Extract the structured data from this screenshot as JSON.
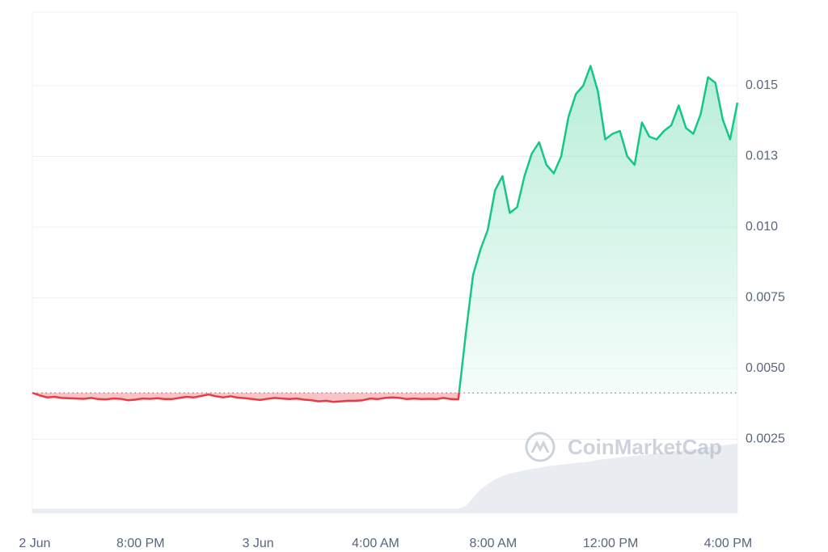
{
  "chart_data": {
    "type": "line",
    "watermark": "CoinMarketCap",
    "values": [
      0.00414,
      0.00405,
      0.00398,
      0.004,
      0.00396,
      0.00395,
      0.00394,
      0.00393,
      0.00396,
      0.00392,
      0.00391,
      0.00394,
      0.00393,
      0.00388,
      0.0039,
      0.00394,
      0.00393,
      0.00395,
      0.00392,
      0.00392,
      0.00396,
      0.004,
      0.00398,
      0.00403,
      0.00408,
      0.00402,
      0.00398,
      0.00402,
      0.00397,
      0.00395,
      0.00392,
      0.00389,
      0.00393,
      0.00396,
      0.00394,
      0.00392,
      0.00394,
      0.0039,
      0.00388,
      0.00384,
      0.00386,
      0.00382,
      0.00384,
      0.00386,
      0.00386,
      0.00388,
      0.00394,
      0.00392,
      0.00396,
      0.00398,
      0.00396,
      0.00392,
      0.00394,
      0.00392,
      0.00393,
      0.00392,
      0.00396,
      0.00392,
      0.00391,
      0.0062,
      0.0083,
      0.0092,
      0.0099,
      0.0113,
      0.0118,
      0.0105,
      0.0107,
      0.0118,
      0.0126,
      0.013,
      0.0122,
      0.0119,
      0.0125,
      0.0139,
      0.0147,
      0.015,
      0.0157,
      0.0148,
      0.0131,
      0.0133,
      0.0134,
      0.0125,
      0.0122,
      0.0137,
      0.0132,
      0.0131,
      0.0134,
      0.0136,
      0.0143,
      0.0135,
      0.0133,
      0.014,
      0.0153,
      0.0151,
      0.0138,
      0.0131,
      0.0144
    ],
    "baseline": 0.00414,
    "color_up": "#16c784",
    "color_down": "#ea3943",
    "volume": [
      1.5,
      1.5,
      1.5,
      1.5,
      1.5,
      1.5,
      1.5,
      1.5,
      1.5,
      1.5,
      1.5,
      1.5,
      1.5,
      1.5,
      1.5,
      1.5,
      1.5,
      1.5,
      1.5,
      1.5,
      1.5,
      1.5,
      1.5,
      1.5,
      1.5,
      1.5,
      1.5,
      1.5,
      1.5,
      1.5,
      1.5,
      1.5,
      1.5,
      1.5,
      1.5,
      1.5,
      1.5,
      1.5,
      1.5,
      1.5,
      1.5,
      1.5,
      1.5,
      1.5,
      1.5,
      1.5,
      1.5,
      1.5,
      1.5,
      1.5,
      1.5,
      1.5,
      1.5,
      1.5,
      1.5,
      1.5,
      1.5,
      1.5,
      1.5,
      5,
      15,
      25,
      32,
      38,
      42,
      45,
      47,
      49,
      51,
      52,
      54,
      55,
      56,
      57,
      58,
      59,
      60,
      62,
      63,
      64,
      65,
      66,
      67,
      68,
      69,
      70,
      71,
      72,
      73,
      74,
      75,
      76,
      78,
      79,
      80,
      81,
      82
    ],
    "volume_ylim": [
      0,
      100
    ],
    "volume_color": "#e9ecf0",
    "xlim": [
      0,
      96
    ],
    "xticks": [
      {
        "value": 0,
        "label": "2 Jun"
      },
      {
        "value": 14.4,
        "label": "8:00 PM"
      },
      {
        "value": 30.4,
        "label": "3 Jun"
      },
      {
        "value": 46.4,
        "label": "4:00 AM"
      },
      {
        "value": 62.4,
        "label": "8:00 AM"
      },
      {
        "value": 78.4,
        "label": "12:00 PM"
      },
      {
        "value": 94.4,
        "label": "4:00 PM"
      }
    ],
    "ylim": [
      0,
      0.0176
    ],
    "yticks": [
      0.0025,
      {
        "value": 0.005,
        "label": "0.0050"
      },
      0.0075,
      {
        "value": 0.01,
        "label": "0.010"
      },
      {
        "value": 0.0125,
        "label": "0.013"
      },
      0.015
    ],
    "grid": true
  }
}
